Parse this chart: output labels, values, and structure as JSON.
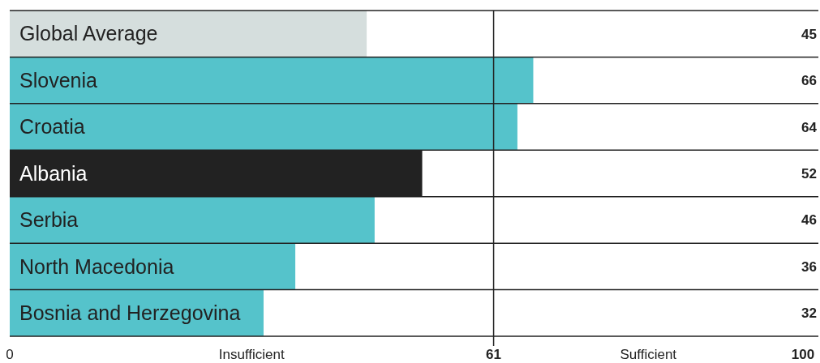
{
  "chart_data": {
    "type": "bar",
    "orientation": "horizontal",
    "categories": [
      "Global Average",
      "Slovenia",
      "Croatia",
      "Albania",
      "Serbia",
      "North Macedonia",
      "Bosnia and Herzegovina"
    ],
    "values": [
      45,
      66,
      64,
      52,
      46,
      36,
      32
    ],
    "colors": [
      "#d5dedd",
      "#55c3cb",
      "#55c3cb",
      "#222222",
      "#55c3cb",
      "#55c3cb",
      "#55c3cb"
    ],
    "xlim": [
      0,
      100
    ],
    "xticks": [
      0,
      61,
      100
    ],
    "ref_lines": [
      {
        "axis": "x",
        "value": 61,
        "color": "#222222"
      }
    ],
    "annotations": [
      "Insufficient",
      "Sufficient"
    ],
    "data_labels": true
  }
}
